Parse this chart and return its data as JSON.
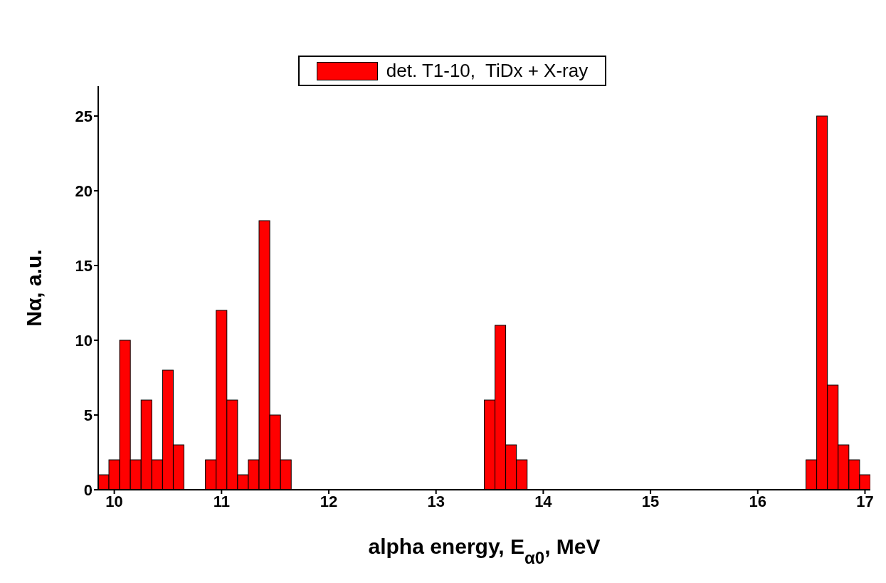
{
  "chart_data": {
    "type": "histogram",
    "bins": [
      9.85,
      9.95,
      10.05,
      10.15,
      10.25,
      10.35,
      10.45,
      10.55,
      10.65,
      10.75,
      10.85,
      10.95,
      11.05,
      11.15,
      11.25,
      11.35,
      11.45,
      11.55,
      11.65,
      11.75,
      11.85,
      11.95,
      12.05,
      12.15,
      12.25,
      12.35,
      12.45,
      12.55,
      12.65,
      12.75,
      12.85,
      12.95,
      13.05,
      13.15,
      13.25,
      13.35,
      13.45,
      13.55,
      13.65,
      13.75,
      13.85,
      13.95,
      14.05,
      14.15,
      14.25,
      14.35,
      14.45,
      14.55,
      14.65,
      14.75,
      14.85,
      14.95,
      15.05,
      15.15,
      15.25,
      15.35,
      15.45,
      15.55,
      15.65,
      15.75,
      15.85,
      15.95,
      16.05,
      16.15,
      16.25,
      16.35,
      16.45,
      16.55,
      16.65,
      16.75,
      16.85,
      16.95,
      17.05
    ],
    "series": [
      {
        "name": "det. T1-10,  TiDx + X-ray",
        "color": "#ff0000",
        "values": [
          1,
          2,
          10,
          2,
          6,
          2,
          8,
          3,
          0,
          0,
          2,
          12,
          6,
          1,
          2,
          18,
          5,
          2,
          0,
          0,
          0,
          0,
          0,
          0,
          0,
          0,
          0,
          0,
          0,
          0,
          0,
          0,
          0,
          0,
          0,
          0,
          6,
          11,
          3,
          2,
          0,
          0,
          0,
          0,
          0,
          0,
          0,
          0,
          0,
          0,
          0,
          0,
          0,
          0,
          0,
          0,
          0,
          0,
          0,
          0,
          0,
          0,
          0,
          0,
          0,
          0,
          2,
          25,
          7,
          3,
          2,
          1
        ]
      }
    ],
    "xlabel": "alpha energy, E$_{α0}$, MeV",
    "ylabel": "Nα, a.u.",
    "xlim": [
      9.85,
      17.05
    ],
    "xticks": [
      10,
      11,
      12,
      13,
      14,
      15,
      16,
      17
    ],
    "ylim": [
      0,
      27
    ],
    "yticks": [
      0,
      5,
      10,
      15,
      20,
      25
    ],
    "legend": "top",
    "grid": false
  }
}
